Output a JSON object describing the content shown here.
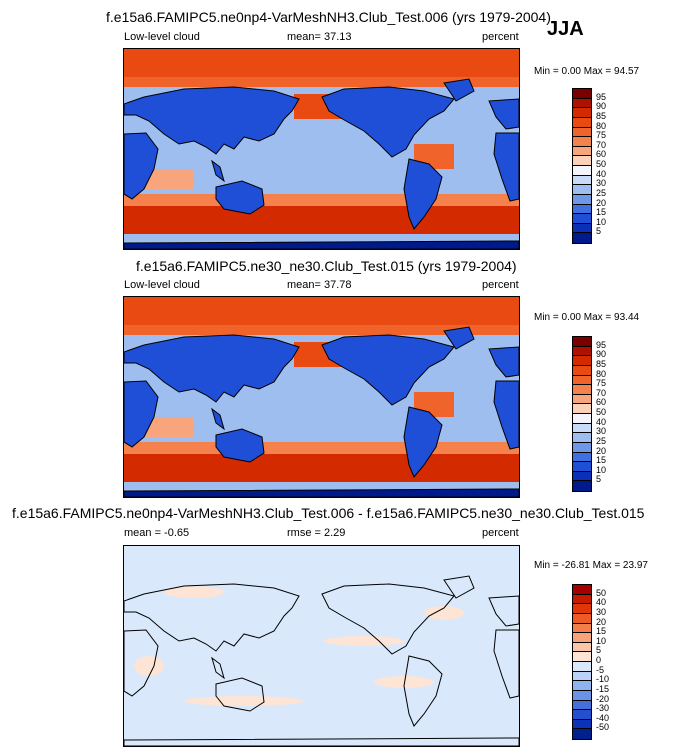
{
  "season": "JJA",
  "panels": [
    {
      "title": "f.e15a6.FAMIPC5.ne0np4-VarMeshNH3.Club_Test.006 (yrs 1979-2004)",
      "left_label": "Low-level cloud",
      "mid_label": "mean=  37.13",
      "units": "percent",
      "min_max": "Min =  0.00 Max = 94.57",
      "field": "model-a"
    },
    {
      "title": "f.e15a6.FAMIPC5.ne30_ne30.Club_Test.015 (yrs 1979-2004)",
      "left_label": "Low-level cloud",
      "mid_label": "mean=  37.78",
      "units": "percent",
      "min_max": "Min =  0.00 Max = 93.44",
      "field": "model-b"
    },
    {
      "title": "f.e15a6.FAMIPC5.ne0np4-VarMeshNH3.Club_Test.006 - f.e15a6.FAMIPC5.ne30_ne30.Club_Test.015",
      "left_label": "mean = -0.65",
      "mid_label": "rmse =  2.29",
      "units": "percent",
      "min_max": "Min = -26.81 Max =  23.97",
      "field": "difference"
    }
  ],
  "colorbar_abs": {
    "labels": [
      "95",
      "90",
      "85",
      "80",
      "75",
      "70",
      "60",
      "50",
      "40",
      "30",
      "25",
      "20",
      "15",
      "10",
      "5"
    ],
    "colors": [
      "#7a0000",
      "#b01000",
      "#d42a00",
      "#e84a12",
      "#f0642c",
      "#f5814c",
      "#f8a47c",
      "#fbd1b8",
      "#f4f4fc",
      "#c9dbf6",
      "#9ebef0",
      "#6f97e8",
      "#3f6fe0",
      "#1f4fd6",
      "#0b2fb8",
      "#001a8c"
    ]
  },
  "colorbar_diff": {
    "labels": [
      "50",
      "40",
      "30",
      "20",
      "15",
      "10",
      "5",
      "0",
      "-5",
      "-10",
      "-15",
      "-20",
      "-30",
      "-40",
      "-50"
    ],
    "colors": [
      "#a50000",
      "#c81a00",
      "#e0360a",
      "#ee5a26",
      "#f47e4a",
      "#f8a27a",
      "#fbc6a8",
      "#fde4d4",
      "#dae8fb",
      "#b9d2f6",
      "#8fb3ef",
      "#6a92e6",
      "#4570dc",
      "#2450d0",
      "#0b32b8",
      "#00208c"
    ]
  }
}
